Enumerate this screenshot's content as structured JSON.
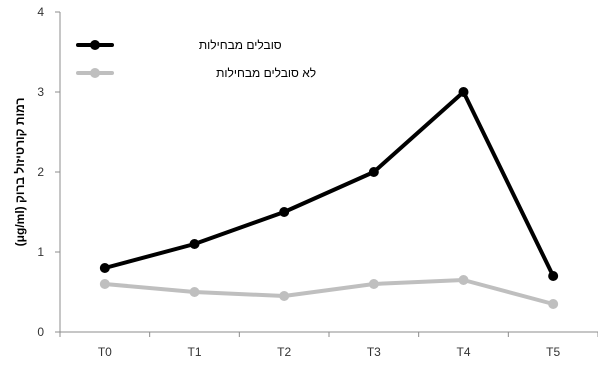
{
  "chart_data": {
    "type": "line",
    "title": "",
    "xlabel": "",
    "ylabel": "רמות קורטיזול ברוק (μg/ml)",
    "categories": [
      "T0",
      "T1",
      "T2",
      "T3",
      "T4",
      "T5"
    ],
    "ylim": [
      0,
      4
    ],
    "yticks": [
      0,
      1,
      2,
      3,
      4
    ],
    "grid": false,
    "legend_position": "top-left",
    "series": [
      {
        "name": "סובלים מבחילות",
        "color": "#000000",
        "values": [
          0.8,
          1.1,
          1.5,
          2.0,
          3.0,
          0.7
        ]
      },
      {
        "name": "לא סובלים מבחילות",
        "color": "#bfbfbf",
        "values": [
          0.6,
          0.5,
          0.45,
          0.6,
          0.65,
          0.35
        ]
      }
    ]
  }
}
